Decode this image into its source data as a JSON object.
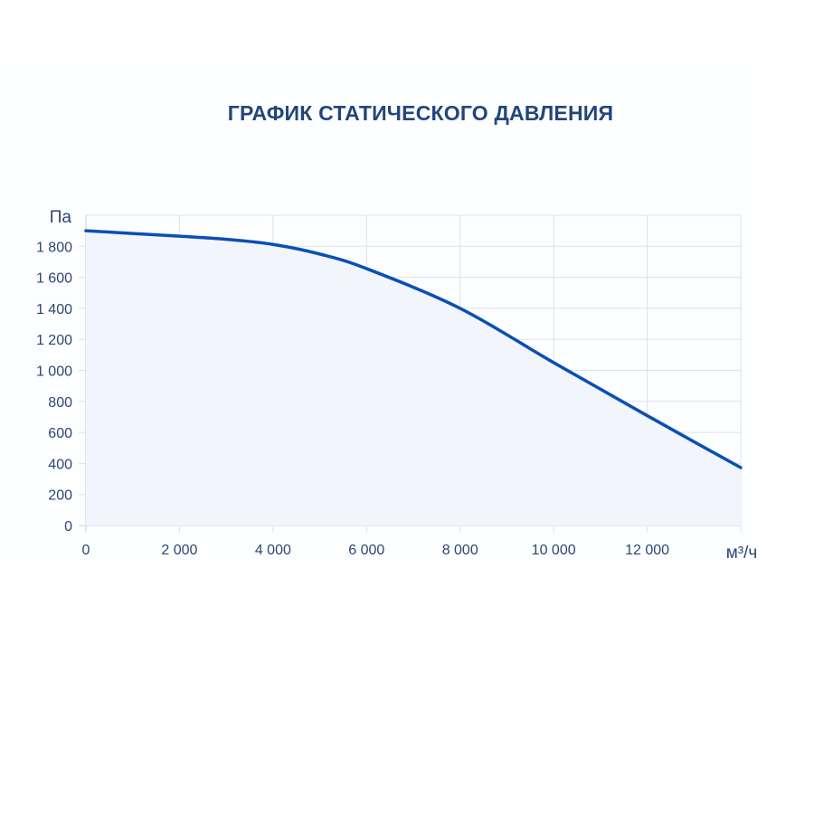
{
  "title": "ГРАФИК СТАТИЧЕСКОГО ДАВЛЕНИЯ",
  "colors": {
    "line": "#0a4fb5",
    "fill": "#f2f6fc",
    "grid": "#dde1e8",
    "text": "#2c4670",
    "title": "#22467a"
  },
  "chart_data": {
    "type": "area",
    "title": "ГРАФИК СТАТИЧЕСКОГО ДАВЛЕНИЯ",
    "xlabel": "м³/ч",
    "ylabel": "Па",
    "xlim": [
      0,
      14000
    ],
    "ylim": [
      0,
      2000
    ],
    "grid": true,
    "x_ticks": [
      0,
      2000,
      4000,
      6000,
      8000,
      10000,
      12000,
      14000
    ],
    "x_tick_labels": [
      "0",
      "2 000",
      "4 000",
      "6 000",
      "8 000",
      "10 000",
      "12 000",
      ""
    ],
    "y_ticks": [
      0,
      200,
      400,
      600,
      800,
      1000,
      1200,
      1400,
      1600,
      1800
    ],
    "y_tick_labels": [
      "0",
      "200",
      "400",
      "600",
      "800",
      "1 000",
      "1 200",
      "1 400",
      "1 600",
      "1 800"
    ],
    "series": [
      {
        "x": [
          0,
          2000,
          3000,
          4000,
          5000,
          6000,
          8000,
          10000,
          12000,
          14000
        ],
        "y": [
          1900,
          1865,
          1845,
          1812,
          1750,
          1656,
          1400,
          1050,
          708,
          373
        ]
      }
    ]
  }
}
